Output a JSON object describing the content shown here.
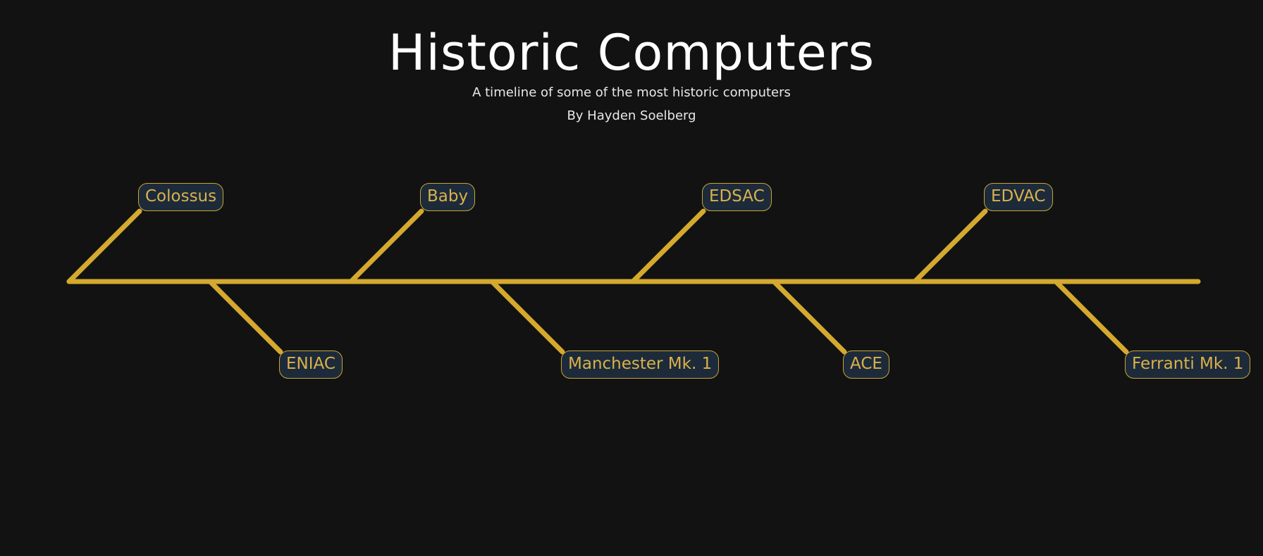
{
  "header": {
    "title": "Historic Computers",
    "subtitle": "A timeline of some of the most historic computers",
    "author": "By Hayden Soelberg"
  },
  "colors": {
    "background": "#121212",
    "line": "#d4a92e",
    "node_fill": "#1d2a3a",
    "node_border": "#c9a534",
    "node_text": "#d9b24a",
    "title_text": "#ffffff"
  },
  "timeline": {
    "order": "left-to-right",
    "branch_pattern": "alternating up/down",
    "events": [
      {
        "label": "Colossus",
        "side": "top"
      },
      {
        "label": "ENIAC",
        "side": "bottom"
      },
      {
        "label": "Baby",
        "side": "top"
      },
      {
        "label": "Manchester Mk. 1",
        "side": "bottom"
      },
      {
        "label": "EDSAC",
        "side": "top"
      },
      {
        "label": "ACE",
        "side": "bottom"
      },
      {
        "label": "EDVAC",
        "side": "top"
      },
      {
        "label": "Ferranti Mk. 1",
        "side": "bottom"
      }
    ]
  }
}
